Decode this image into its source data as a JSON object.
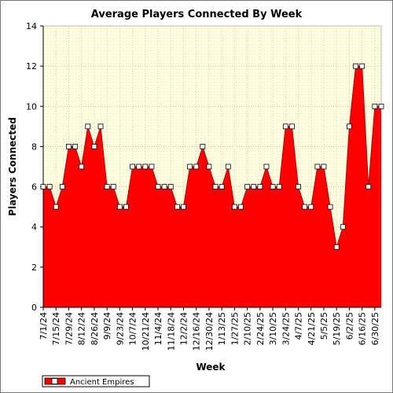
{
  "chart_data": {
    "type": "area",
    "title": "Average Players Connected By Week",
    "xlabel": "Week",
    "ylabel": "Players Connected",
    "ylim": [
      0,
      14
    ],
    "yticks": [
      0,
      2,
      4,
      6,
      8,
      10,
      12,
      14
    ],
    "grid": true,
    "legend_position": "bottom-left",
    "x_tick_labels": [
      "7/1/24",
      "7/15/24",
      "7/29/24",
      "8/12/24",
      "8/26/24",
      "9/9/24",
      "9/23/24",
      "10/7/24",
      "10/21/24",
      "11/4/24",
      "11/18/24",
      "12/2/24",
      "12/16/24",
      "12/30/24",
      "1/13/25",
      "1/27/25",
      "2/10/25",
      "2/24/25",
      "3/10/25",
      "3/24/25",
      "4/7/25",
      "4/21/25",
      "5/5/25",
      "5/19/25",
      "6/2/25",
      "6/16/25",
      "6/30/25"
    ],
    "x": [
      "7/1/24",
      "7/8/24",
      "7/15/24",
      "7/22/24",
      "7/29/24",
      "8/5/24",
      "8/12/24",
      "8/19/24",
      "8/26/24",
      "9/2/24",
      "9/9/24",
      "9/16/24",
      "9/23/24",
      "9/30/24",
      "10/7/24",
      "10/14/24",
      "10/21/24",
      "10/28/24",
      "11/4/24",
      "11/11/24",
      "11/18/24",
      "11/25/24",
      "12/2/24",
      "12/9/24",
      "12/16/24",
      "12/23/24",
      "12/30/24",
      "1/6/25",
      "1/13/25",
      "1/20/25",
      "1/27/25",
      "2/3/25",
      "2/10/25",
      "2/17/25",
      "2/24/25",
      "3/3/25",
      "3/10/25",
      "3/17/25",
      "3/24/25",
      "3/31/25",
      "4/7/25",
      "4/14/25",
      "4/21/25",
      "4/28/25",
      "5/5/25",
      "5/12/25",
      "5/19/25",
      "5/26/25",
      "6/2/25",
      "6/9/25",
      "6/16/25",
      "6/23/25",
      "6/30/25",
      "7/7/25"
    ],
    "series": [
      {
        "name": "Ancient Empires",
        "color": "#ff0000",
        "values": [
          6,
          6,
          5,
          6,
          8,
          8,
          7,
          9,
          8,
          9,
          6,
          6,
          5,
          5,
          7,
          7,
          7,
          7,
          6,
          6,
          6,
          5,
          5,
          7,
          7,
          8,
          7,
          6,
          6,
          7,
          5,
          5,
          6,
          6,
          6,
          7,
          6,
          6,
          9,
          9,
          6,
          5,
          5,
          7,
          7,
          5,
          3,
          4,
          9,
          12,
          12,
          6,
          10,
          10
        ]
      }
    ]
  }
}
